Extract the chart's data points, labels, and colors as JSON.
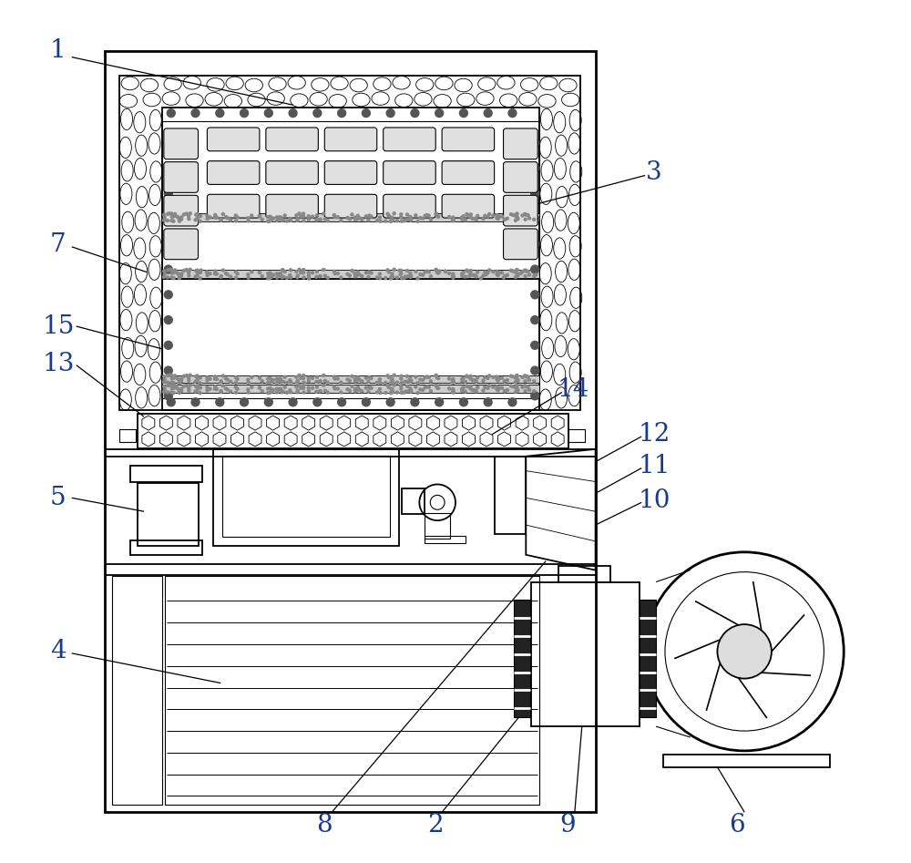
{
  "bg_color": "#ffffff",
  "line_color": "#000000",
  "label_color": "#1a3a8a",
  "fig_width": 10.0,
  "fig_height": 9.47
}
